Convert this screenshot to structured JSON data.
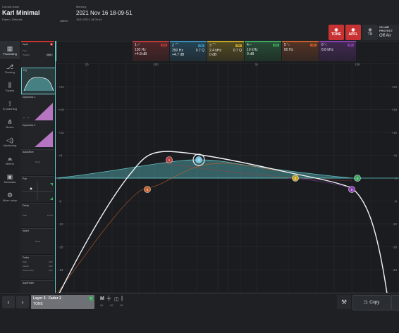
{
  "header": {
    "current_show_label": "Current show",
    "show_name": "Karl Minimal",
    "show_sub": "Daten / Defaults",
    "sample_rate": "48kHz",
    "memory_label": "Memory",
    "memory_name": "2021 Nov 16 18-09-51",
    "memory_date": "16/11/2021 18:09:44",
    "tone_label": "TONE",
    "apfl_label": "APFL",
    "tb_label": "TB",
    "on_air_label": "ON AIR PROTECT",
    "on_air_value": "Off Air"
  },
  "nav": [
    {
      "label": "Processing",
      "icon": "grid-icon"
    },
    {
      "label": "Routing",
      "icon": "routing-icon"
    },
    {
      "label": "Faders",
      "icon": "faders-icon"
    },
    {
      "label": "ID patching",
      "icon": "patch-icon"
    },
    {
      "label": "Buses",
      "icon": "buses-icon"
    },
    {
      "label": "Monitoring",
      "icon": "speaker-icon"
    },
    {
      "label": "Meters",
      "icon": "meters-icon"
    },
    {
      "label": "Metadata",
      "icon": "metadata-icon"
    },
    {
      "label": "Mixer setup",
      "icon": "setup-icon"
    }
  ],
  "strip": {
    "input_title": "Input",
    "input_badge": "8",
    "input_row1": "Trim",
    "input_row2": "Polarity",
    "input_row2_val": "OFF",
    "eq_title": "EQ",
    "dyn1_title": "Dynamics 1",
    "dyn1_c": "C",
    "dyn1_g": "G",
    "dyn2_title": "Dynamics 2",
    "automixer_title": "AutoMixer",
    "none1": "None",
    "pan_title": "Pan",
    "delay_title": "Delay",
    "delay_row": "Path",
    "delay_val": "0.1ms",
    "insert_title": "Insert",
    "none2": "None",
    "fader_title": "Fader",
    "fader_row1": "Path",
    "fader_row1_val": "OFF",
    "fader_row2": "Master",
    "fader_row2_val": "OFF",
    "fader_row3": "Actual store",
    "fader_row3_val": "OFF",
    "autofader_title": "AutoFader"
  },
  "bands": [
    {
      "num": "1",
      "icon": "highpass-icon",
      "tag": "ON",
      "freq": "130 Hz",
      "q": "",
      "gain": "+4.8 dB",
      "color": "#b83a3a"
    },
    {
      "num": "2",
      "icon": "bell-icon",
      "tag": "ON",
      "freq": "250 Hz",
      "q": "0.7 Q",
      "gain": "+4.7 dB",
      "color": "#3a8fb8"
    },
    {
      "num": "3",
      "icon": "bell-icon",
      "tag": "ON",
      "freq": "2.4 kHz",
      "q": "0.7 Q",
      "gain": "0 dB",
      "color": "#c4a626"
    },
    {
      "num": "4",
      "icon": "shelf-icon",
      "tag": "ON",
      "freq": "10 kHz",
      "q": "",
      "gain": "0 dB",
      "color": "#3fa860"
    },
    {
      "num": "5",
      "icon": "slope-icon",
      "tag": "ON",
      "freq": "80 Hz",
      "q": "",
      "gain": "",
      "color": "#c4602c"
    },
    {
      "num": "6",
      "icon": "lowpass-icon",
      "tag": "ON",
      "freq": "8.8 kHz",
      "q": "",
      "gain": "",
      "color": "#8a3fb0"
    }
  ],
  "graph": {
    "freq_ticks": [
      "20",
      "100",
      "1k",
      "10k"
    ],
    "db_ticks": [
      "+24",
      "+18",
      "+12",
      "+6",
      "0",
      "-6",
      "-12",
      "-18",
      "-24"
    ],
    "db_ticks_right": [
      "+24",
      "+18",
      "+12",
      "+6",
      "0",
      "-6",
      "-12",
      "-18",
      "-24"
    ],
    "handles": [
      "1",
      "2",
      "3",
      "4",
      "5",
      "6"
    ]
  },
  "bottom": {
    "layer_label": "Layer 3 · Fader 2",
    "layer_badge": "1",
    "layer_channel": "TONE",
    "m_label": "M",
    "m_sub1": "M1",
    "m_sub2": "M2",
    "m_sub3": "M3",
    "copy_label": "Copy"
  }
}
